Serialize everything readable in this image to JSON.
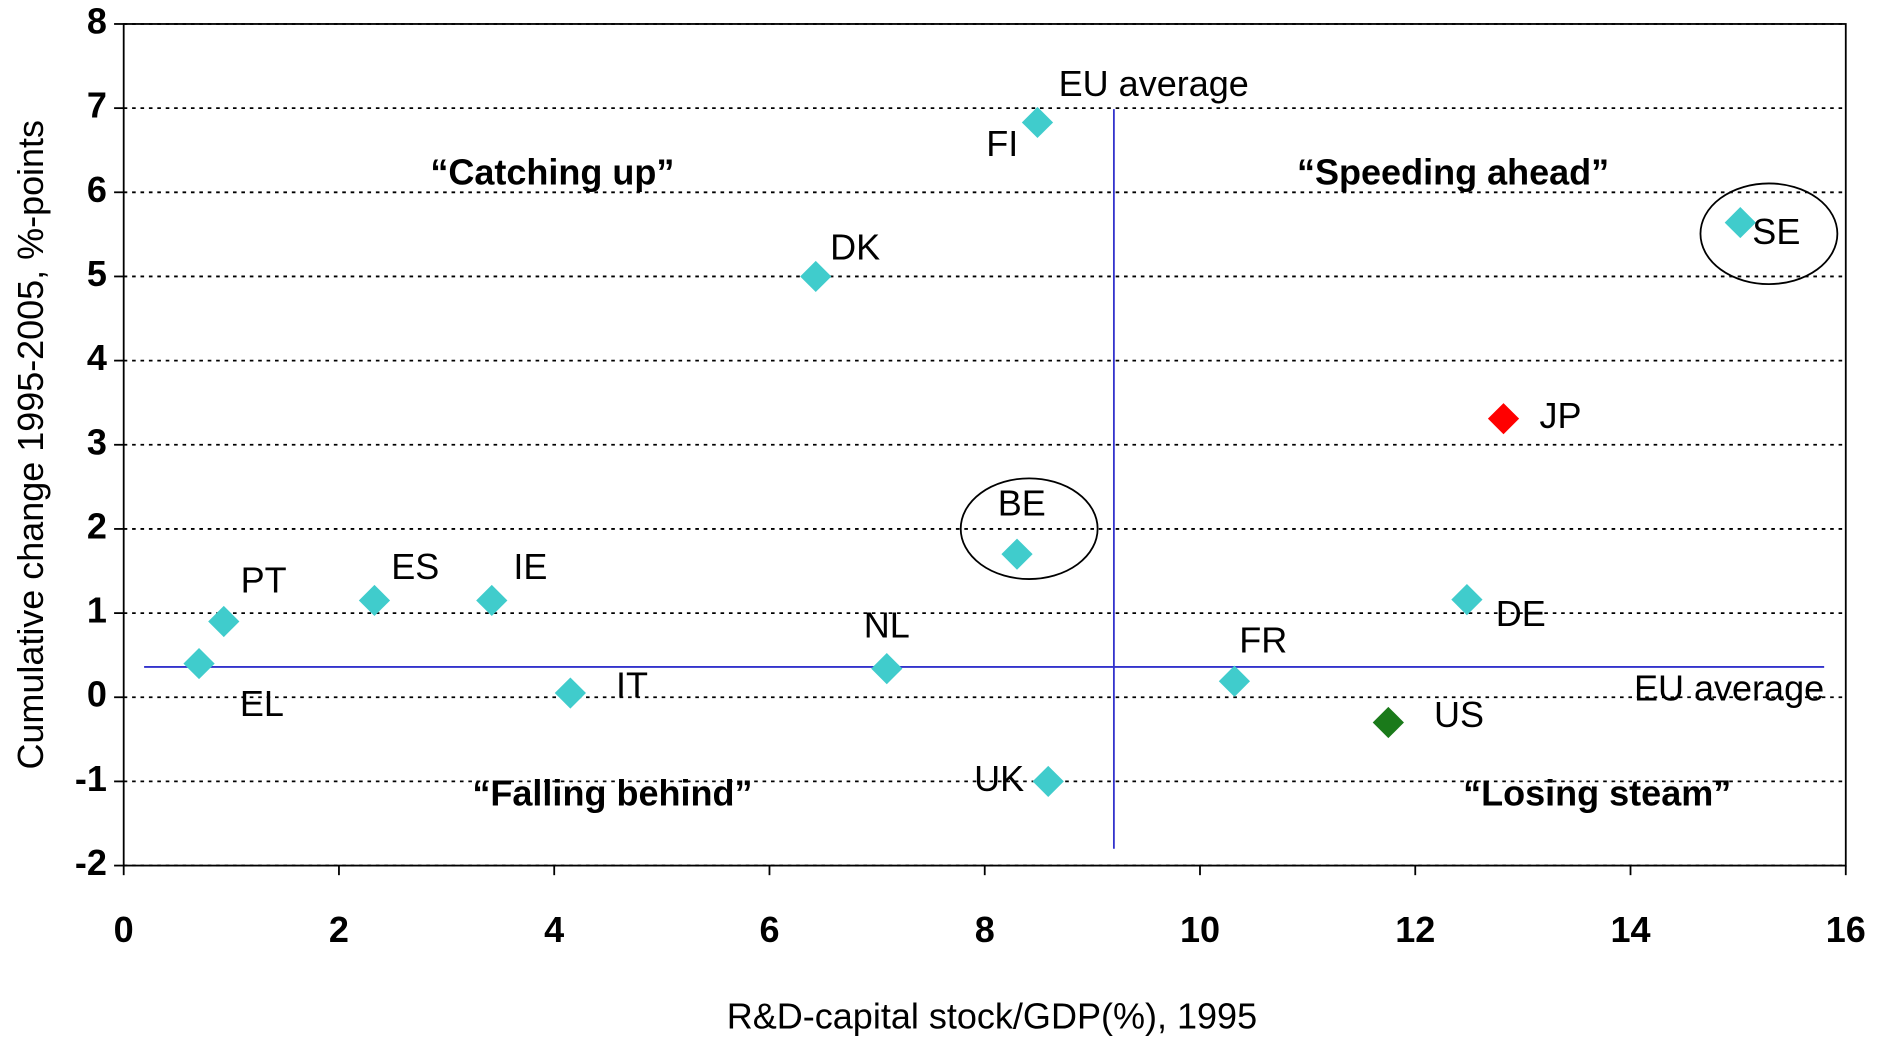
{
  "chart_data": {
    "type": "scatter",
    "x_label": "R&D-capital stock/GDP(%), 1995",
    "y_label": "Cumulative change 1995-2005,  %-points",
    "point_labels": [
      "PT",
      "EL",
      "ES",
      "IE",
      "IT",
      "DK",
      "NL",
      "BE",
      "FI",
      "UK",
      "FR",
      "US",
      "DE",
      "JP",
      "SE"
    ],
    "x": [
      0.93,
      0.7,
      2.33,
      3.42,
      4.15,
      6.43,
      7.09,
      8.3,
      8.49,
      8.59,
      10.32,
      11.75,
      12.48,
      12.82,
      15.02
    ],
    "values": [
      0.9,
      0.4,
      1.15,
      1.15,
      0.05,
      5.0,
      0.34,
      1.7,
      6.83,
      -1.0,
      0.19,
      -0.3,
      1.16,
      3.31,
      5.64
    ],
    "colors": [
      "#40cccc",
      "#40cccc",
      "#40cccc",
      "#40cccc",
      "#40cccc",
      "#40cccc",
      "#40cccc",
      "#40cccc",
      "#40cccc",
      "#40cccc",
      "#40cccc",
      "#1a7a1a",
      "#40cccc",
      "#ff0000",
      "#40cccc"
    ],
    "xlim": [
      0,
      16
    ],
    "xticks": [
      0,
      2,
      4,
      6,
      8,
      10,
      12,
      14,
      16
    ],
    "ylim": [
      -2,
      8
    ],
    "yticks": [
      -2,
      -1,
      0,
      1,
      2,
      3,
      4,
      5,
      6,
      7,
      8
    ],
    "grid": true,
    "reference_lines": [
      {
        "label": "EU average",
        "x": 9.2
      },
      {
        "label": "EU average",
        "y": 0.36
      }
    ],
    "reference_color": "#3333cc",
    "annotations": [
      "“Catching up”",
      "“Speeding ahead”",
      "“Falling behind”",
      "“Losing steam”"
    ]
  }
}
